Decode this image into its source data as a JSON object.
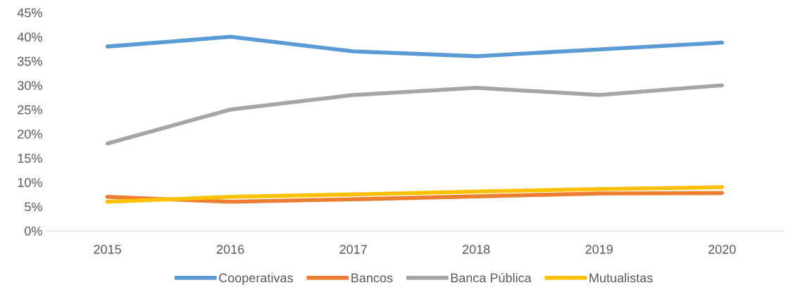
{
  "chart_data": {
    "type": "line",
    "categories": [
      "2015",
      "2016",
      "2017",
      "2018",
      "2019",
      "2020"
    ],
    "series": [
      {
        "name": "Cooperativas",
        "color": "#5b9bd5",
        "values": [
          38.0,
          40.0,
          37.0,
          36.0,
          37.4,
          38.8
        ]
      },
      {
        "name": "Bancos",
        "color": "#ed7d31",
        "values": [
          7.0,
          6.0,
          6.5,
          7.1,
          7.7,
          7.8
        ]
      },
      {
        "name": "Banca Pública",
        "color": "#a5a5a5",
        "values": [
          18.0,
          25.0,
          28.0,
          29.5,
          28.0,
          30.0
        ]
      },
      {
        "name": "Mutualistas",
        "color": "#ffc000",
        "values": [
          6.0,
          7.0,
          7.5,
          8.1,
          8.6,
          9.0
        ]
      }
    ],
    "ylim": [
      0,
      45
    ],
    "yticks": [
      {
        "value": 0,
        "label": "0%"
      },
      {
        "value": 5,
        "label": "5%"
      },
      {
        "value": 10,
        "label": "10%"
      },
      {
        "value": 15,
        "label": "15%"
      },
      {
        "value": 20,
        "label": "20%"
      },
      {
        "value": 25,
        "label": "25%"
      },
      {
        "value": 30,
        "label": "30%"
      },
      {
        "value": 35,
        "label": "35%"
      },
      {
        "value": 40,
        "label": "40%"
      },
      {
        "value": 45,
        "label": "45%"
      }
    ],
    "grid": false,
    "legend": "bottom",
    "marker": "none",
    "line_style": "solid"
  }
}
